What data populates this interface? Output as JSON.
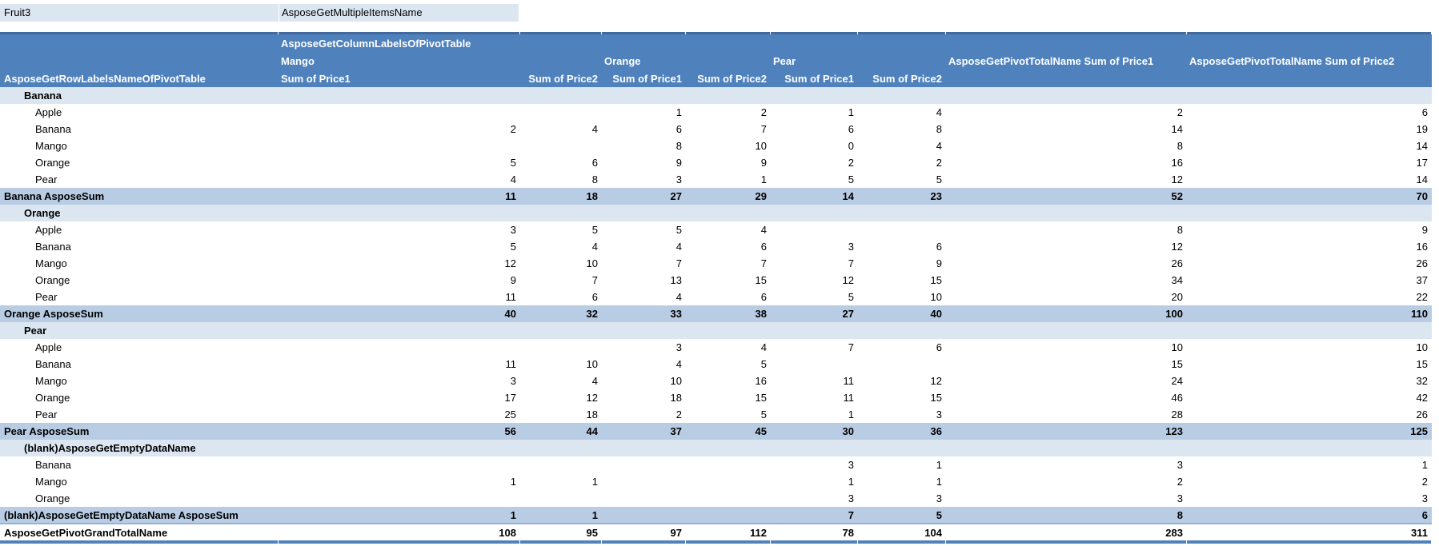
{
  "filter": {
    "field": "Fruit3",
    "value": "AsposeGetMultipleItemsName"
  },
  "header": {
    "column_labels_title": "AsposeGetColumnLabelsOfPivotTable",
    "row_labels_title": "AsposeGetRowLabelsNameOfPivotTable",
    "col_groups": [
      "Mango",
      "Orange",
      "Pear"
    ],
    "grand_total_col1": "AsposeGetPivotTotalName Sum of Price1",
    "grand_total_col2": "AsposeGetPivotTotalName Sum of Price2",
    "sub_headers": [
      "Sum of Price1",
      "Sum of Price2",
      "Sum of Price1",
      "Sum of Price2",
      "Sum of Price1",
      "Sum of Price2"
    ]
  },
  "rows": [
    {
      "type": "group",
      "label": "Banana",
      "values": [
        "",
        "",
        "",
        "",
        "",
        "",
        "",
        ""
      ]
    },
    {
      "type": "item",
      "label": "Apple",
      "values": [
        "",
        "",
        1,
        2,
        1,
        4,
        2,
        6
      ]
    },
    {
      "type": "item",
      "label": "Banana",
      "values": [
        2,
        4,
        6,
        7,
        6,
        8,
        14,
        19
      ]
    },
    {
      "type": "item",
      "label": "Mango",
      "values": [
        "",
        "",
        8,
        10,
        0,
        4,
        8,
        14
      ]
    },
    {
      "type": "item",
      "label": "Orange",
      "values": [
        5,
        6,
        9,
        9,
        2,
        2,
        16,
        17
      ]
    },
    {
      "type": "item",
      "label": "Pear",
      "values": [
        4,
        8,
        3,
        1,
        5,
        5,
        12,
        14
      ]
    },
    {
      "type": "subtotal",
      "label": "Banana AsposeSum",
      "values": [
        11,
        18,
        27,
        29,
        14,
        23,
        52,
        70
      ]
    },
    {
      "type": "group",
      "label": "Orange",
      "values": [
        "",
        "",
        "",
        "",
        "",
        "",
        "",
        ""
      ]
    },
    {
      "type": "item",
      "label": "Apple",
      "values": [
        3,
        5,
        5,
        4,
        "",
        "",
        8,
        9
      ]
    },
    {
      "type": "item",
      "label": "Banana",
      "values": [
        5,
        4,
        4,
        6,
        3,
        6,
        12,
        16
      ]
    },
    {
      "type": "item",
      "label": "Mango",
      "values": [
        12,
        10,
        7,
        7,
        7,
        9,
        26,
        26
      ]
    },
    {
      "type": "item",
      "label": "Orange",
      "values": [
        9,
        7,
        13,
        15,
        12,
        15,
        34,
        37
      ]
    },
    {
      "type": "item",
      "label": "Pear",
      "values": [
        11,
        6,
        4,
        6,
        5,
        10,
        20,
        22
      ]
    },
    {
      "type": "subtotal",
      "label": "Orange AsposeSum",
      "values": [
        40,
        32,
        33,
        38,
        27,
        40,
        100,
        110
      ]
    },
    {
      "type": "group",
      "label": "Pear",
      "values": [
        "",
        "",
        "",
        "",
        "",
        "",
        "",
        ""
      ]
    },
    {
      "type": "item",
      "label": "Apple",
      "values": [
        "",
        "",
        3,
        4,
        7,
        6,
        10,
        10
      ]
    },
    {
      "type": "item",
      "label": "Banana",
      "values": [
        11,
        10,
        4,
        5,
        "",
        "",
        15,
        15
      ]
    },
    {
      "type": "item",
      "label": "Mango",
      "values": [
        3,
        4,
        10,
        16,
        11,
        12,
        24,
        32
      ]
    },
    {
      "type": "item",
      "label": "Orange",
      "values": [
        17,
        12,
        18,
        15,
        11,
        15,
        46,
        42
      ]
    },
    {
      "type": "item",
      "label": "Pear",
      "values": [
        25,
        18,
        2,
        5,
        1,
        3,
        28,
        26
      ]
    },
    {
      "type": "subtotal",
      "label": "Pear AsposeSum",
      "values": [
        56,
        44,
        37,
        45,
        30,
        36,
        123,
        125
      ]
    },
    {
      "type": "group",
      "label": "(blank)AsposeGetEmptyDataName",
      "values": [
        "",
        "",
        "",
        "",
        "",
        "",
        "",
        ""
      ]
    },
    {
      "type": "item",
      "label": "Banana",
      "values": [
        "",
        "",
        "",
        "",
        3,
        1,
        3,
        1
      ]
    },
    {
      "type": "item",
      "label": "Mango",
      "values": [
        1,
        1,
        "",
        "",
        1,
        1,
        2,
        2
      ]
    },
    {
      "type": "item",
      "label": "Orange",
      "values": [
        "",
        "",
        "",
        "",
        3,
        3,
        3,
        3
      ]
    },
    {
      "type": "subtotal",
      "label": "(blank)AsposeGetEmptyDataName AsposeSum",
      "values": [
        1,
        1,
        "",
        "",
        7,
        5,
        8,
        6
      ]
    },
    {
      "type": "grandtotal",
      "label": "AsposeGetPivotGrandTotalName",
      "values": [
        108,
        95,
        97,
        112,
        78,
        104,
        283,
        311
      ]
    }
  ],
  "colors": {
    "header_bg": "#4f81bd",
    "subtotal_bg": "#b8cce4",
    "group_bg": "#dce6f1",
    "filter_bg": "#dce6f1",
    "accent_line": "#44699e",
    "thin_line": "#95b3d7",
    "bottom_line": "#4f81bd"
  }
}
